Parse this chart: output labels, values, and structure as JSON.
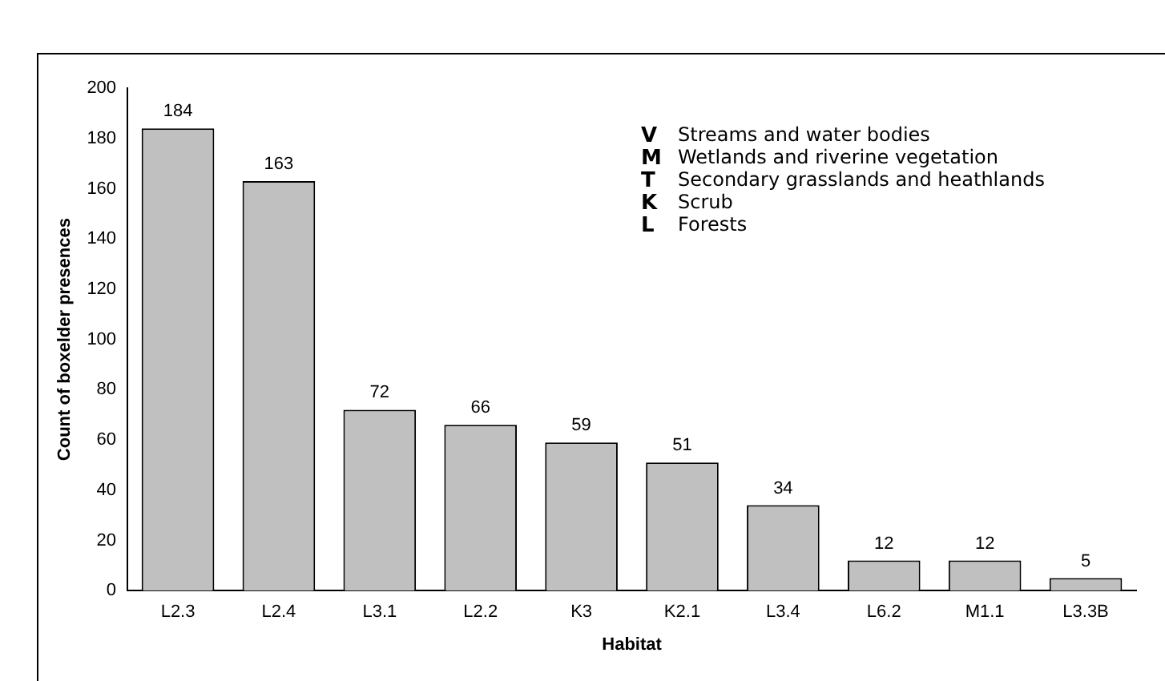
{
  "chart_data": {
    "type": "bar",
    "xlabel": "Habitat",
    "ylabel": "Count of boxelder presences",
    "categories": [
      "L2.3",
      "L2.4",
      "L3.1",
      "L2.2",
      "K3",
      "K2.1",
      "L3.4",
      "L6.2",
      "M1.1",
      "L3.3B"
    ],
    "values": [
      184,
      163,
      72,
      66,
      59,
      51,
      34,
      12,
      12,
      5
    ],
    "color": "#c0c0c0",
    "ylim": [
      0,
      200
    ],
    "yticks": [
      0,
      20,
      40,
      60,
      80,
      100,
      120,
      140,
      160,
      180,
      200
    ],
    "grid": false,
    "legend": false,
    "data_labels": true,
    "annotations": [
      "V Streams and water bodies",
      "M Wetlands and riverine vegetation",
      "T Secondary grasslands and heathlands",
      "K Scrub",
      "L Forests"
    ]
  }
}
